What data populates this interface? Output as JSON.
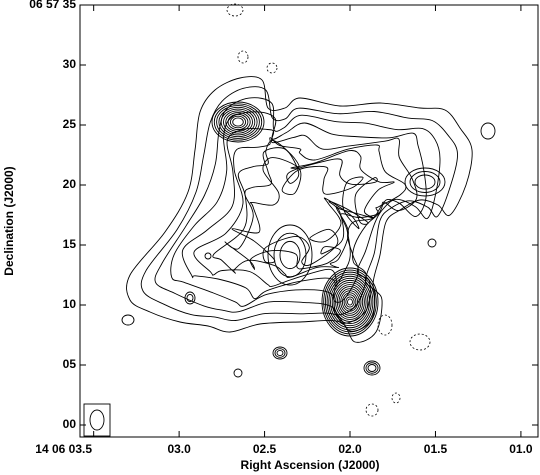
{
  "chart_data": {
    "type": "contour",
    "x_label": "Right Ascension (J2000)",
    "y_label": "Declination (J2000)",
    "xlim": [
      3.58,
      0.9
    ],
    "ylim": [
      -1,
      35
    ],
    "xticks": [
      {
        "value": 3.5,
        "label": "14 06 03.5"
      },
      {
        "value": 3.0,
        "label": "03.0"
      },
      {
        "value": 2.5,
        "label": "02.5"
      },
      {
        "value": 2.0,
        "label": "02.0"
      },
      {
        "value": 1.5,
        "label": "01.5"
      },
      {
        "value": 1.0,
        "label": "01.0"
      }
    ],
    "yticks": [
      {
        "value": 35,
        "label": "06 57 35"
      },
      30,
      25,
      20,
      15,
      10,
      {
        "value": 5,
        "label": "05"
      },
      {
        "value": 0,
        "label": "00"
      }
    ],
    "color": "#000000"
  }
}
